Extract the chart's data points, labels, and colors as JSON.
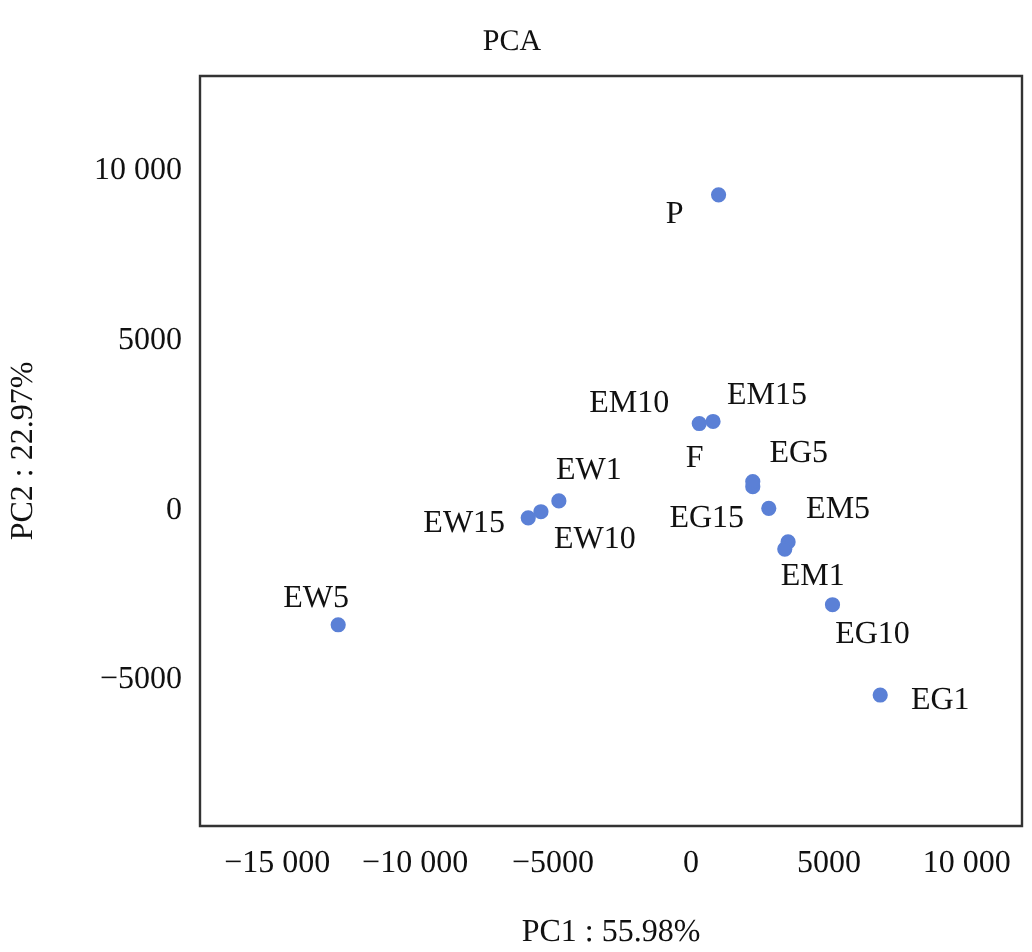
{
  "chart_data": {
    "type": "scatter",
    "title": "PCA",
    "xlabel": "PC1 : 55.98%",
    "ylabel": "PC2 : 22.97%",
    "x": [
      1000,
      300,
      800,
      2240,
      2240,
      2820,
      3520,
      3400,
      5130,
      6860,
      -4790,
      -5440,
      -5900,
      -12790
    ],
    "series": [
      {
        "color": "#5b80d6",
        "values": [
          9300,
          2560,
          2620,
          700,
          850,
          60,
          -930,
          -1140,
          -2780,
          -5440,
          280,
          -40,
          -220,
          -3370
        ]
      }
    ],
    "annotations": [
      {
        "text": "P",
        "x": 1000,
        "y": 9300
      },
      {
        "text": "EM10",
        "x": 300,
        "y": 2560
      },
      {
        "text": "EM15",
        "x": 800,
        "y": 2620
      },
      {
        "text": "F",
        "x": 2240,
        "y": 700
      },
      {
        "text": "EG5",
        "x": 2240,
        "y": 850
      },
      {
        "text": "EG15",
        "x": 2820,
        "y": 60
      },
      {
        "text": "EM5",
        "x": 3520,
        "y": -930
      },
      {
        "text": "EM1",
        "x": 3400,
        "y": -1140
      },
      {
        "text": "EG10",
        "x": 5130,
        "y": -2780
      },
      {
        "text": "EG1",
        "x": 6860,
        "y": -5440
      },
      {
        "text": "EW1",
        "x": -4790,
        "y": 280
      },
      {
        "text": "EW10",
        "x": -5440,
        "y": -40
      },
      {
        "text": "EW15",
        "x": -5900,
        "y": -220
      },
      {
        "text": "EW5",
        "x": -12790,
        "y": -3370
      }
    ],
    "xlim": [
      -17800,
      12000
    ],
    "ylim": [
      -9300,
      12800
    ],
    "xticks": [
      {
        "value": -15000,
        "label": "−15 000"
      },
      {
        "value": -10000,
        "label": "−10 000"
      },
      {
        "value": -5000,
        "label": "−5000"
      },
      0,
      5000,
      {
        "value": 10000,
        "label": "10 000"
      }
    ],
    "yticks": [
      {
        "value": -5000,
        "label": "−5000"
      },
      0,
      5000,
      {
        "value": 10000,
        "label": "10 000"
      }
    ],
    "grid": false,
    "legend": false,
    "marker": "circle"
  }
}
